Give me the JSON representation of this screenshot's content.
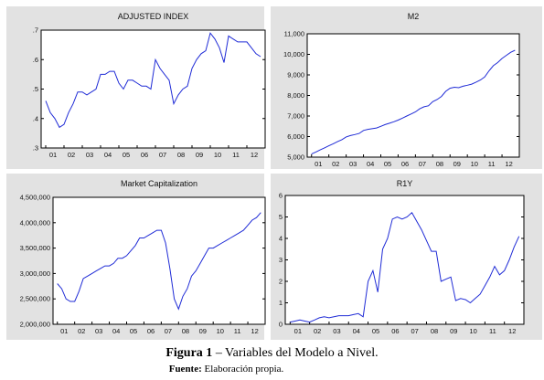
{
  "caption": {
    "figure_label": "Figura 1",
    "figure_title": " – Variables del Modelo a Nivel.",
    "source_label": "Fuente:",
    "source_text": " Elaboración propia."
  },
  "chart_data": [
    {
      "type": "line",
      "title": "ADJUSTED INDEX",
      "x_tick_labels": [
        "01",
        "02",
        "03",
        "04",
        "05",
        "06",
        "07",
        "08",
        "09",
        "10",
        "11",
        "12"
      ],
      "y_ticks": [
        0.3,
        0.4,
        0.5,
        0.6,
        0.7
      ],
      "y_tick_labels": [
        ".3",
        ".4",
        ".5",
        ".6",
        ".7"
      ],
      "ylim": [
        0.3,
        0.7
      ],
      "xlim": [
        2000.75,
        2013.0
      ],
      "x": [
        2001.0,
        2001.25,
        2001.5,
        2001.75,
        2002.0,
        2002.25,
        2002.5,
        2002.75,
        2003.0,
        2003.25,
        2003.5,
        2003.75,
        2004.0,
        2004.25,
        2004.5,
        2004.75,
        2005.0,
        2005.25,
        2005.5,
        2005.75,
        2006.0,
        2006.25,
        2006.5,
        2006.75,
        2007.0,
        2007.25,
        2007.5,
        2007.75,
        2008.0,
        2008.25,
        2008.5,
        2008.75,
        2009.0,
        2009.25,
        2009.5,
        2009.75,
        2010.0,
        2010.25,
        2010.5,
        2010.75,
        2011.0,
        2011.25,
        2011.5,
        2011.75,
        2012.0,
        2012.25,
        2012.5,
        2012.75
      ],
      "y": [
        0.46,
        0.42,
        0.4,
        0.37,
        0.38,
        0.42,
        0.45,
        0.49,
        0.49,
        0.48,
        0.49,
        0.5,
        0.55,
        0.55,
        0.56,
        0.56,
        0.52,
        0.5,
        0.53,
        0.53,
        0.52,
        0.51,
        0.51,
        0.5,
        0.6,
        0.57,
        0.55,
        0.53,
        0.45,
        0.48,
        0.5,
        0.51,
        0.57,
        0.6,
        0.62,
        0.63,
        0.69,
        0.67,
        0.64,
        0.59,
        0.68,
        0.67,
        0.66,
        0.66,
        0.66,
        0.64,
        0.62,
        0.61
      ]
    },
    {
      "type": "line",
      "title": "M2",
      "x_tick_labels": [
        "01",
        "02",
        "03",
        "04",
        "05",
        "06",
        "07",
        "08",
        "09",
        "10",
        "11",
        "12"
      ],
      "y_ticks": [
        5000,
        6000,
        7000,
        8000,
        9000,
        10000,
        11000
      ],
      "y_tick_labels": [
        "5,000",
        "6,000",
        "7,000",
        "8,000",
        "9,000",
        "10,000",
        "11,000"
      ],
      "ylim": [
        5000,
        11000
      ],
      "xlim": [
        2000.75,
        2013.0
      ],
      "x": [
        2001.0,
        2001.25,
        2001.5,
        2001.75,
        2002.0,
        2002.25,
        2002.5,
        2002.75,
        2003.0,
        2003.25,
        2003.5,
        2003.75,
        2004.0,
        2004.25,
        2004.5,
        2004.75,
        2005.0,
        2005.25,
        2005.5,
        2005.75,
        2006.0,
        2006.25,
        2006.5,
        2006.75,
        2007.0,
        2007.25,
        2007.5,
        2007.75,
        2008.0,
        2008.25,
        2008.5,
        2008.75,
        2009.0,
        2009.25,
        2009.5,
        2009.75,
        2010.0,
        2010.25,
        2010.5,
        2010.75,
        2011.0,
        2011.25,
        2011.5,
        2011.75,
        2012.0,
        2012.25,
        2012.5,
        2012.75
      ],
      "y": [
        5150,
        5250,
        5350,
        5450,
        5550,
        5650,
        5750,
        5850,
        5980,
        6050,
        6100,
        6150,
        6300,
        6350,
        6380,
        6420,
        6500,
        6580,
        6650,
        6720,
        6800,
        6900,
        7000,
        7100,
        7200,
        7350,
        7450,
        7500,
        7700,
        7800,
        7950,
        8200,
        8350,
        8400,
        8380,
        8450,
        8500,
        8550,
        8650,
        8750,
        8900,
        9200,
        9450,
        9600,
        9800,
        9950,
        10100,
        10200
      ]
    },
    {
      "type": "line",
      "title": "Market Capitalization",
      "x_tick_labels": [
        "01",
        "02",
        "03",
        "04",
        "05",
        "06",
        "07",
        "08",
        "09",
        "10",
        "11",
        "12"
      ],
      "y_ticks": [
        2000000,
        2500000,
        3000000,
        3500000,
        4000000,
        4500000
      ],
      "y_tick_labels": [
        "2,000,000",
        "2,500,000",
        "3,000,000",
        "3,500,000",
        "4,000,000",
        "4,500,000"
      ],
      "ylim": [
        2000000,
        4500000
      ],
      "xlim": [
        2000.75,
        2013.0
      ],
      "x": [
        2001.0,
        2001.25,
        2001.5,
        2001.75,
        2002.0,
        2002.25,
        2002.5,
        2002.75,
        2003.0,
        2003.25,
        2003.5,
        2003.75,
        2004.0,
        2004.25,
        2004.5,
        2004.75,
        2005.0,
        2005.25,
        2005.5,
        2005.75,
        2006.0,
        2006.25,
        2006.5,
        2006.75,
        2007.0,
        2007.25,
        2007.5,
        2007.75,
        2008.0,
        2008.25,
        2008.5,
        2008.75,
        2009.0,
        2009.25,
        2009.5,
        2009.75,
        2010.0,
        2010.25,
        2010.5,
        2010.75,
        2011.0,
        2011.25,
        2011.5,
        2011.75,
        2012.0,
        2012.25,
        2012.5,
        2012.75
      ],
      "y": [
        2800000,
        2700000,
        2500000,
        2450000,
        2450000,
        2650000,
        2900000,
        2950000,
        3000000,
        3050000,
        3100000,
        3150000,
        3150000,
        3200000,
        3300000,
        3300000,
        3350000,
        3450000,
        3550000,
        3700000,
        3700000,
        3750000,
        3800000,
        3850000,
        3850000,
        3600000,
        3100000,
        2500000,
        2300000,
        2550000,
        2700000,
        2950000,
        3050000,
        3200000,
        3350000,
        3500000,
        3500000,
        3550000,
        3600000,
        3650000,
        3700000,
        3750000,
        3800000,
        3850000,
        3950000,
        4050000,
        4100000,
        4200000
      ]
    },
    {
      "type": "line",
      "title": "R1Y",
      "x_tick_labels": [
        "01",
        "02",
        "03",
        "04",
        "05",
        "06",
        "07",
        "08",
        "09",
        "10",
        "11",
        "12"
      ],
      "y_ticks": [
        0,
        1,
        2,
        3,
        4,
        5,
        6
      ],
      "y_tick_labels": [
        "0",
        "1",
        "2",
        "3",
        "4",
        "5",
        "6"
      ],
      "ylim": [
        0,
        6
      ],
      "xlim": [
        2000.75,
        2013.0
      ],
      "x": [
        2001.0,
        2001.25,
        2001.5,
        2001.75,
        2002.0,
        2002.25,
        2002.5,
        2002.75,
        2003.0,
        2003.25,
        2003.5,
        2003.75,
        2004.0,
        2004.25,
        2004.5,
        2004.75,
        2005.0,
        2005.25,
        2005.5,
        2005.75,
        2006.0,
        2006.25,
        2006.5,
        2006.75,
        2007.0,
        2007.25,
        2007.5,
        2007.75,
        2008.0,
        2008.25,
        2008.5,
        2008.75,
        2009.0,
        2009.25,
        2009.5,
        2009.75,
        2010.0,
        2010.25,
        2010.5,
        2010.75,
        2011.0,
        2011.25,
        2011.5,
        2011.75,
        2012.0,
        2012.25,
        2012.5,
        2012.75
      ],
      "y": [
        0.1,
        0.15,
        0.2,
        0.15,
        0.1,
        0.2,
        0.3,
        0.35,
        0.3,
        0.35,
        0.4,
        0.4,
        0.4,
        0.45,
        0.5,
        0.35,
        2.0,
        2.5,
        1.5,
        3.5,
        4.0,
        4.9,
        5.0,
        4.9,
        5.0,
        5.2,
        4.8,
        4.4,
        3.9,
        3.4,
        3.4,
        2.0,
        2.1,
        2.2,
        1.1,
        1.2,
        1.15,
        1.0,
        1.2,
        1.4,
        1.8,
        2.2,
        2.7,
        2.3,
        2.5,
        3.0,
        3.6,
        4.1
      ]
    }
  ]
}
